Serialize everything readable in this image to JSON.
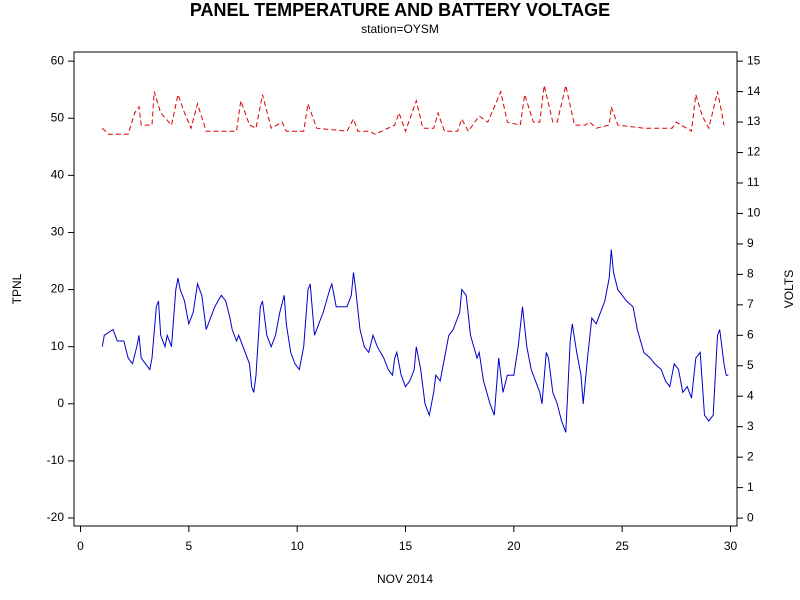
{
  "chart_data": {
    "type": "line",
    "title": "PANEL TEMPERATURE AND BATTERY VOLTAGE",
    "subtitle": "station=OYSM",
    "x_label": "NOV 2014",
    "y_label": "TPNL",
    "y2_label": "VOLTS",
    "xlim": [
      -0.3,
      30.3
    ],
    "xticks": [
      0,
      5,
      10,
      15,
      20,
      25,
      30
    ],
    "ylim": [
      -21.4,
      61.6
    ],
    "yticks": [
      -20,
      -10,
      0,
      10,
      20,
      30,
      40,
      50,
      60
    ],
    "y2lim": [
      -0.26,
      15.3
    ],
    "y2ticks": [
      0,
      1,
      2,
      3,
      4,
      5,
      6,
      7,
      8,
      9,
      10,
      11,
      12,
      13,
      14,
      15
    ],
    "series": [
      {
        "name": "TPNL",
        "color": "#0000cc",
        "line_style": "solid",
        "x": [
          1.0,
          1.1,
          1.5,
          1.7,
          2.0,
          2.2,
          2.4,
          2.6,
          2.7,
          2.8,
          3.0,
          3.2,
          3.3,
          3.5,
          3.6,
          3.7,
          3.9,
          4.0,
          4.2,
          4.4,
          4.5,
          4.6,
          4.8,
          5.0,
          5.2,
          5.4,
          5.6,
          5.8,
          6.0,
          6.2,
          6.5,
          6.7,
          6.9,
          7.0,
          7.2,
          7.3,
          7.5,
          7.8,
          7.9,
          8.0,
          8.1,
          8.3,
          8.4,
          8.6,
          8.8,
          9.0,
          9.2,
          9.4,
          9.5,
          9.7,
          9.9,
          10.1,
          10.3,
          10.5,
          10.6,
          10.8,
          11.0,
          11.2,
          11.5,
          11.6,
          11.8,
          12.0,
          12.3,
          12.5,
          12.6,
          12.7,
          12.9,
          13.1,
          13.3,
          13.5,
          13.7,
          14.0,
          14.2,
          14.4,
          14.5,
          14.6,
          14.8,
          15.0,
          15.2,
          15.4,
          15.5,
          15.7,
          15.9,
          16.1,
          16.3,
          16.4,
          16.6,
          16.8,
          17.0,
          17.2,
          17.5,
          17.6,
          17.8,
          18.0,
          18.3,
          18.4,
          18.6,
          18.9,
          19.1,
          19.3,
          19.5,
          19.7,
          20.0,
          20.2,
          20.4,
          20.6,
          20.8,
          21.0,
          21.2,
          21.3,
          21.5,
          21.6,
          21.8,
          22.0,
          22.2,
          22.4,
          22.6,
          22.7,
          22.9,
          23.1,
          23.2,
          23.4,
          23.6,
          23.8,
          24.0,
          24.2,
          24.4,
          24.5,
          24.6,
          24.8,
          25.0,
          25.2,
          25.5,
          25.7,
          26.0,
          26.3,
          26.5,
          26.8,
          27.0,
          27.2,
          27.4,
          27.6,
          27.8,
          28.0,
          28.2,
          28.4,
          28.6,
          28.8,
          29.0,
          29.2,
          29.4,
          29.5,
          29.7,
          29.8,
          29.9
        ],
        "values": [
          10,
          12,
          13,
          11,
          11,
          8,
          7,
          10,
          12,
          8,
          7,
          6,
          8,
          17,
          18,
          12,
          10,
          12,
          10,
          20,
          22,
          20,
          18,
          14,
          16,
          21,
          19,
          13,
          15,
          17,
          19,
          18,
          15,
          13,
          11,
          12,
          10,
          7,
          3,
          2,
          5,
          17,
          18,
          12,
          10,
          12,
          16,
          19,
          14,
          9,
          7,
          6,
          10,
          20,
          21,
          12,
          14,
          16,
          20,
          21,
          17,
          17,
          17,
          19,
          23,
          20,
          13,
          10,
          9,
          12,
          10,
          8,
          6,
          5,
          8,
          9,
          5,
          3,
          4,
          6,
          10,
          6,
          0,
          -2,
          2,
          5,
          4,
          8,
          12,
          13,
          16,
          20,
          19,
          12,
          8,
          9,
          4,
          0,
          -2,
          8,
          2,
          5,
          5,
          10,
          17,
          10,
          6,
          4,
          2,
          0,
          9,
          8,
          2,
          0,
          -3,
          -5,
          11,
          14,
          9,
          5,
          0,
          8,
          15,
          14,
          16,
          18,
          22,
          27,
          23,
          20,
          19,
          18,
          17,
          13,
          9,
          8,
          7,
          6,
          4,
          3,
          7,
          6,
          2,
          3,
          1,
          8,
          9,
          -2,
          -3,
          -2,
          12,
          13,
          7,
          5,
          5
        ]
      },
      {
        "name": "VOLTS",
        "color": "#dd0000",
        "line_style": "dashed",
        "axis": "y2",
        "x": [
          1.0,
          1.3,
          2.2,
          2.5,
          2.7,
          2.8,
          3.3,
          3.4,
          3.7,
          4.2,
          4.5,
          4.8,
          5.1,
          5.4,
          5.8,
          7.2,
          7.4,
          7.8,
          8.1,
          8.4,
          8.8,
          9.3,
          9.5,
          10.3,
          10.5,
          10.9,
          12.3,
          12.6,
          12.8,
          13.3,
          13.6,
          14.5,
          14.7,
          15.0,
          15.5,
          15.8,
          16.3,
          16.5,
          16.8,
          17.4,
          17.6,
          17.9,
          18.4,
          18.8,
          19.4,
          19.7,
          20.3,
          20.5,
          20.9,
          21.2,
          21.4,
          21.8,
          22.0,
          22.4,
          22.8,
          23.3,
          23.5,
          23.8,
          24.4,
          24.5,
          24.8,
          26.0,
          27.3,
          27.5,
          28.2,
          28.4,
          28.7,
          29.0,
          29.4,
          29.6,
          29.7
        ],
        "values": [
          12.8,
          12.6,
          12.6,
          13.3,
          13.5,
          12.9,
          12.9,
          14.0,
          13.3,
          12.9,
          13.9,
          13.3,
          12.8,
          13.6,
          12.7,
          12.7,
          13.7,
          12.9,
          12.8,
          13.9,
          12.8,
          13.0,
          12.7,
          12.7,
          13.6,
          12.8,
          12.7,
          13.1,
          12.7,
          12.7,
          12.6,
          12.9,
          13.3,
          12.7,
          13.7,
          12.8,
          12.8,
          13.3,
          12.7,
          12.7,
          13.1,
          12.7,
          13.2,
          13.0,
          14.0,
          13.0,
          12.9,
          13.9,
          13.0,
          13.0,
          14.2,
          13.0,
          13.0,
          14.2,
          12.9,
          12.9,
          13.0,
          12.8,
          12.9,
          13.5,
          12.9,
          12.8,
          12.8,
          13.0,
          12.7,
          13.9,
          13.2,
          12.8,
          14.0,
          13.3,
          12.9
        ]
      }
    ]
  }
}
